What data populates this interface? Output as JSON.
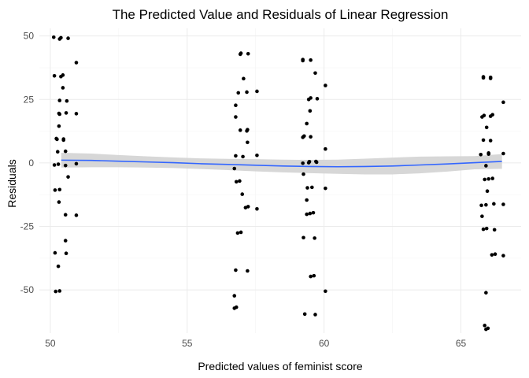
{
  "chart_data": {
    "type": "scatter",
    "title": "The Predicted Value and Residuals of Linear Regression",
    "xlabel": "Predicted values of feminist score",
    "ylabel": "Residuals",
    "xlim": [
      49.6,
      67.2
    ],
    "ylim": [
      -67,
      53
    ],
    "x_ticks": [
      50,
      55,
      60,
      65
    ],
    "y_ticks": [
      -50,
      -25,
      0,
      25,
      50
    ],
    "grid": true,
    "colors": {
      "points": "#000000",
      "smooth_line": "#3366ff",
      "ribbon": "#d3d3d3"
    },
    "groups": [
      {
        "x": 50.4,
        "residuals": [
          49.5,
          49.3,
          49.1,
          48.8,
          39.5,
          34.6,
          34.3,
          34.0,
          29.6,
          24.6,
          24.4,
          19.7,
          19.5,
          19.4,
          19.2,
          14.5,
          9.6,
          9.4,
          9.3,
          9.0,
          4.6,
          4.4,
          -0.3,
          -0.5,
          -0.8,
          -1.0,
          -5.5,
          -10.5,
          -10.7,
          -15.4,
          -20.4,
          -20.6,
          -30.6,
          -35.4,
          -35.6,
          -40.7,
          -50.4,
          -50.6
        ]
      },
      {
        "x": 57.0,
        "residuals": [
          43.2,
          43.0,
          42.8,
          33.2,
          28.2,
          27.9,
          27.6,
          22.7,
          18.1,
          13.1,
          12.9,
          12.6,
          8.1,
          3.0,
          2.8,
          2.5,
          -2.2,
          -7.1,
          -7.4,
          -12.3,
          -17.2,
          -17.6,
          -18.1,
          -27.3,
          -27.6,
          -42.2,
          -42.5,
          -52.3,
          -56.8,
          -57.2
        ]
      },
      {
        "x": 59.5,
        "residuals": [
          40.7,
          40.5,
          40.3,
          35.4,
          30.5,
          25.6,
          25.3,
          25.0,
          20.5,
          15.5,
          10.6,
          10.3,
          10.1,
          5.5,
          0.6,
          0.5,
          0.3,
          0.1,
          -0.1,
          -4.4,
          -9.6,
          -9.8,
          -10.0,
          -14.6,
          -19.6,
          -19.9,
          -20.2,
          -29.4,
          -29.6,
          -44.4,
          -44.7,
          -50.5,
          -59.5,
          -59.7
        ]
      },
      {
        "x": 66.0,
        "residuals": [
          33.9,
          33.7,
          33.5,
          33.3,
          23.9,
          19.0,
          18.7,
          18.4,
          18.1,
          14.0,
          9.0,
          8.8,
          3.9,
          3.7,
          3.5,
          3.3,
          -1.1,
          -6.1,
          -6.3,
          -6.5,
          -11.1,
          -16.1,
          -16.3,
          -16.5,
          -16.7,
          -21.0,
          -25.8,
          -26.1,
          -26.3,
          -35.9,
          -36.2,
          -36.5,
          -51.1,
          -64.0,
          -65.1,
          -65.5
        ]
      }
    ],
    "smooth": [
      {
        "x": 50.4,
        "y": 1.1
      },
      {
        "x": 51.5,
        "y": 1.0
      },
      {
        "x": 52.5,
        "y": 0.7
      },
      {
        "x": 53.5,
        "y": 0.4
      },
      {
        "x": 54.5,
        "y": 0.1
      },
      {
        "x": 55.5,
        "y": -0.3
      },
      {
        "x": 56.5,
        "y": -0.6
      },
      {
        "x": 57.5,
        "y": -0.9
      },
      {
        "x": 58.5,
        "y": -1.2
      },
      {
        "x": 59.5,
        "y": -1.4
      },
      {
        "x": 60.5,
        "y": -1.5
      },
      {
        "x": 61.5,
        "y": -1.4
      },
      {
        "x": 62.5,
        "y": -1.2
      },
      {
        "x": 63.5,
        "y": -0.8
      },
      {
        "x": 64.5,
        "y": -0.4
      },
      {
        "x": 65.5,
        "y": 0.1
      },
      {
        "x": 66.5,
        "y": 0.6
      }
    ],
    "ribbon_halfwidth": [
      2.9,
      2.7,
      2.4,
      2.2,
      2.1,
      2.1,
      2.2,
      2.4,
      2.5,
      2.6,
      2.8,
      3.1,
      3.3,
      3.3,
      3.0,
      2.6,
      2.9
    ]
  }
}
